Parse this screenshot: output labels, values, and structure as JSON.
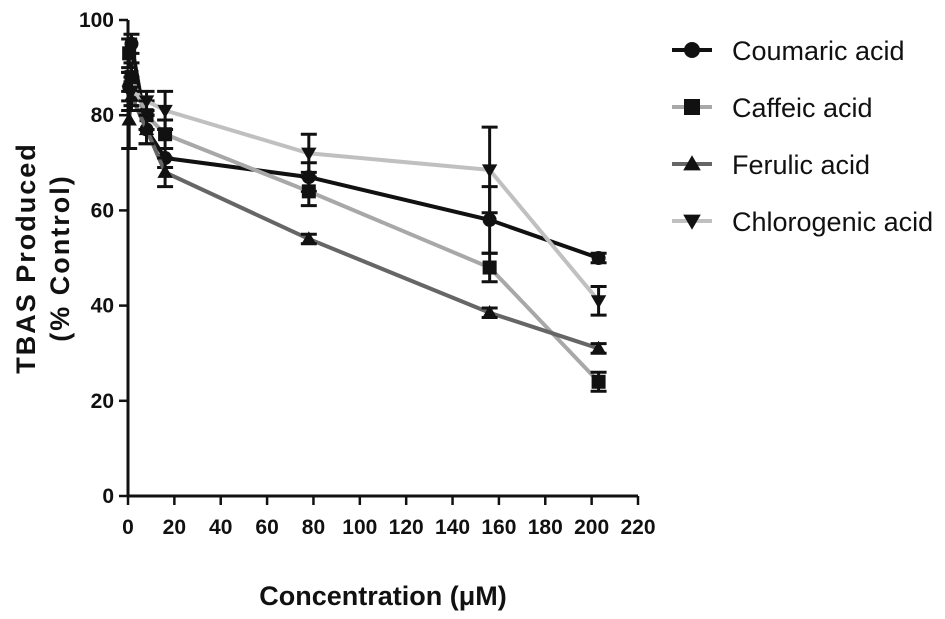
{
  "chart_data": {
    "type": "line",
    "xlabel": "Concentration (μM)",
    "ylabel_line1": "TBAS Produced",
    "ylabel_line2": "(% Control)",
    "xlim": [
      0,
      220
    ],
    "ylim": [
      0,
      100
    ],
    "xticks": [
      0,
      20,
      40,
      60,
      80,
      100,
      120,
      140,
      160,
      180,
      200,
      220
    ],
    "yticks": [
      0,
      20,
      40,
      60,
      80,
      100
    ],
    "grid": false,
    "legend_position": "top-right",
    "series": [
      {
        "name": "Coumaric acid",
        "marker": "circle",
        "color": "#111111",
        "x": [
          0.5,
          1.5,
          8,
          16,
          78,
          156,
          203
        ],
        "y": [
          86,
          95,
          77,
          71,
          67,
          58,
          50
        ],
        "err": [
          3,
          2,
          3,
          2,
          3,
          7,
          1
        ]
      },
      {
        "name": "Caffeic acid",
        "marker": "square",
        "color": "#a8a8a8",
        "x": [
          0.5,
          1.5,
          8,
          16,
          78,
          156,
          203
        ],
        "y": [
          93,
          88,
          80,
          76,
          64,
          48,
          24
        ],
        "err": [
          3,
          3,
          3,
          3,
          3,
          3,
          2
        ]
      },
      {
        "name": "Ferulic acid",
        "marker": "triangle-up",
        "color": "#666666",
        "x": [
          0.5,
          1.5,
          8,
          16,
          78,
          156,
          203
        ],
        "y": [
          79,
          84,
          77,
          68,
          54,
          38.5,
          31
        ],
        "err": [
          6,
          3,
          3,
          3,
          1,
          1,
          1
        ]
      },
      {
        "name": "Chlorogenic acid",
        "marker": "triangle-down",
        "color": "#c0c0c0",
        "x": [
          0.5,
          1.5,
          8,
          16,
          78,
          156,
          203
        ],
        "y": [
          85,
          85,
          83,
          81,
          72,
          68.5,
          41
        ],
        "err": [
          4,
          3,
          2,
          4,
          4,
          9,
          3
        ]
      }
    ]
  }
}
